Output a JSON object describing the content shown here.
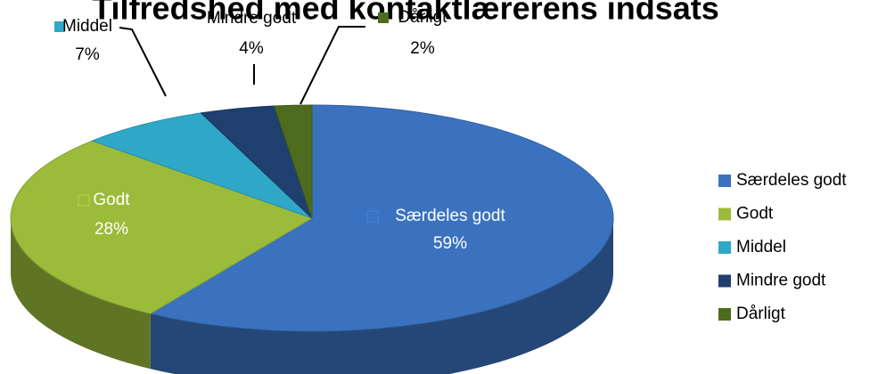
{
  "chart_data": {
    "type": "pie",
    "title": "Tilfredshed med kontaktlærerens indsats",
    "categories": [
      "Særdeles godt",
      "Godt",
      "Middel",
      "Mindre godt",
      "Dårligt"
    ],
    "values": [
      59,
      28,
      7,
      4,
      2
    ],
    "value_labels": [
      "59%",
      "28%",
      "7%",
      "4%",
      "2%"
    ],
    "colors": [
      "#3a72c0",
      "#9bbb3b",
      "#2fa8c8",
      "#1f3f6e",
      "#4f6b1e"
    ],
    "legend": "right"
  }
}
